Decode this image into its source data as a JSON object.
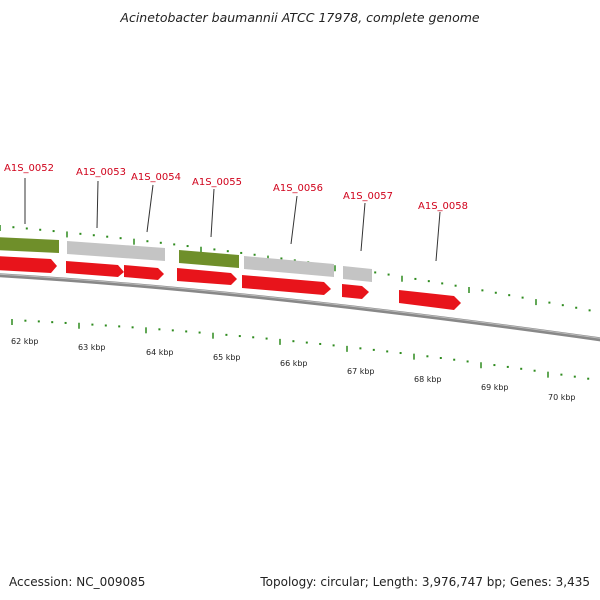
{
  "header": {
    "title": "Acinetobacter baumannii ATCC 17978, complete genome"
  },
  "footer": {
    "accession": "Accession: NC_009085",
    "summary": "Topology: circular; Length: 3,976,747 bp; Genes: 3,435"
  },
  "colors": {
    "gene_label": "#d0021b",
    "forward_cds": "#e8141b",
    "feature_green": "#6f8f2a",
    "feature_gray": "#c4c4c4",
    "backbone": "#888888",
    "tick": "#2e8b1e"
  },
  "genes": [
    {
      "label": "A1S_0052"
    },
    {
      "label": "A1S_0053"
    },
    {
      "label": "A1S_0054"
    },
    {
      "label": "A1S_0055"
    },
    {
      "label": "A1S_0056"
    },
    {
      "label": "A1S_0057"
    },
    {
      "label": "A1S_0058"
    }
  ],
  "scale": {
    "labels": [
      "62 kbp",
      "63 kbp",
      "64 kbp",
      "65 kbp",
      "66 kbp",
      "67 kbp",
      "68 kbp",
      "69 kbp",
      "70 kbp"
    ]
  }
}
